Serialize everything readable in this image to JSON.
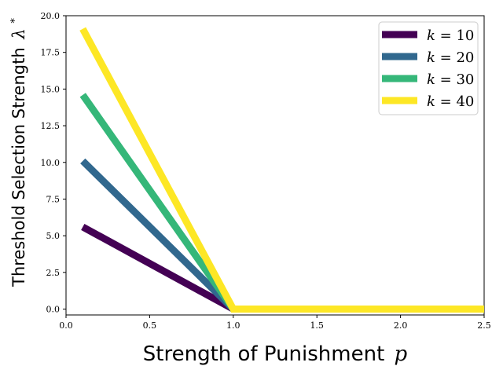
{
  "chart_data": {
    "type": "line",
    "xlabel": "Strength of Punishment",
    "xlabel_var": "p",
    "ylabel": "Threshold Selection Strength",
    "ylabel_var": "λ",
    "ylabel_sup": "*",
    "xlim": [
      0.0,
      2.5
    ],
    "ylim": [
      -0.4,
      20.0
    ],
    "xticks": [
      0.0,
      0.5,
      1.0,
      1.5,
      2.0,
      2.5
    ],
    "xtick_labels": [
      "0.0",
      "0.5",
      "1.0",
      "1.5",
      "2.0",
      "2.5"
    ],
    "yticks": [
      0.0,
      2.5,
      5.0,
      7.5,
      10.0,
      12.5,
      15.0,
      17.5,
      20.0
    ],
    "ytick_labels": [
      "0.0",
      "2.5",
      "5.0",
      "7.5",
      "10.0",
      "12.5",
      "15.0",
      "17.5",
      "20.0"
    ],
    "grid": false,
    "legend_position": "top-right",
    "series": [
      {
        "name": "k = 10",
        "var": "k",
        "val": "10",
        "color": "#440154",
        "x": [
          0.1,
          1.0,
          2.5
        ],
        "y": [
          5.6,
          0.0,
          0.0
        ]
      },
      {
        "name": "k = 20",
        "var": "k",
        "val": "20",
        "color": "#31688e",
        "x": [
          0.1,
          1.0,
          2.5
        ],
        "y": [
          10.1,
          0.0,
          0.0
        ]
      },
      {
        "name": "k = 30",
        "var": "k",
        "val": "30",
        "color": "#35b779",
        "x": [
          0.1,
          1.0,
          2.5
        ],
        "y": [
          14.6,
          0.0,
          0.0
        ]
      },
      {
        "name": "k = 40",
        "var": "k",
        "val": "40",
        "color": "#fde725",
        "x": [
          0.1,
          1.0,
          2.5
        ],
        "y": [
          19.1,
          0.0,
          0.0
        ]
      }
    ]
  }
}
